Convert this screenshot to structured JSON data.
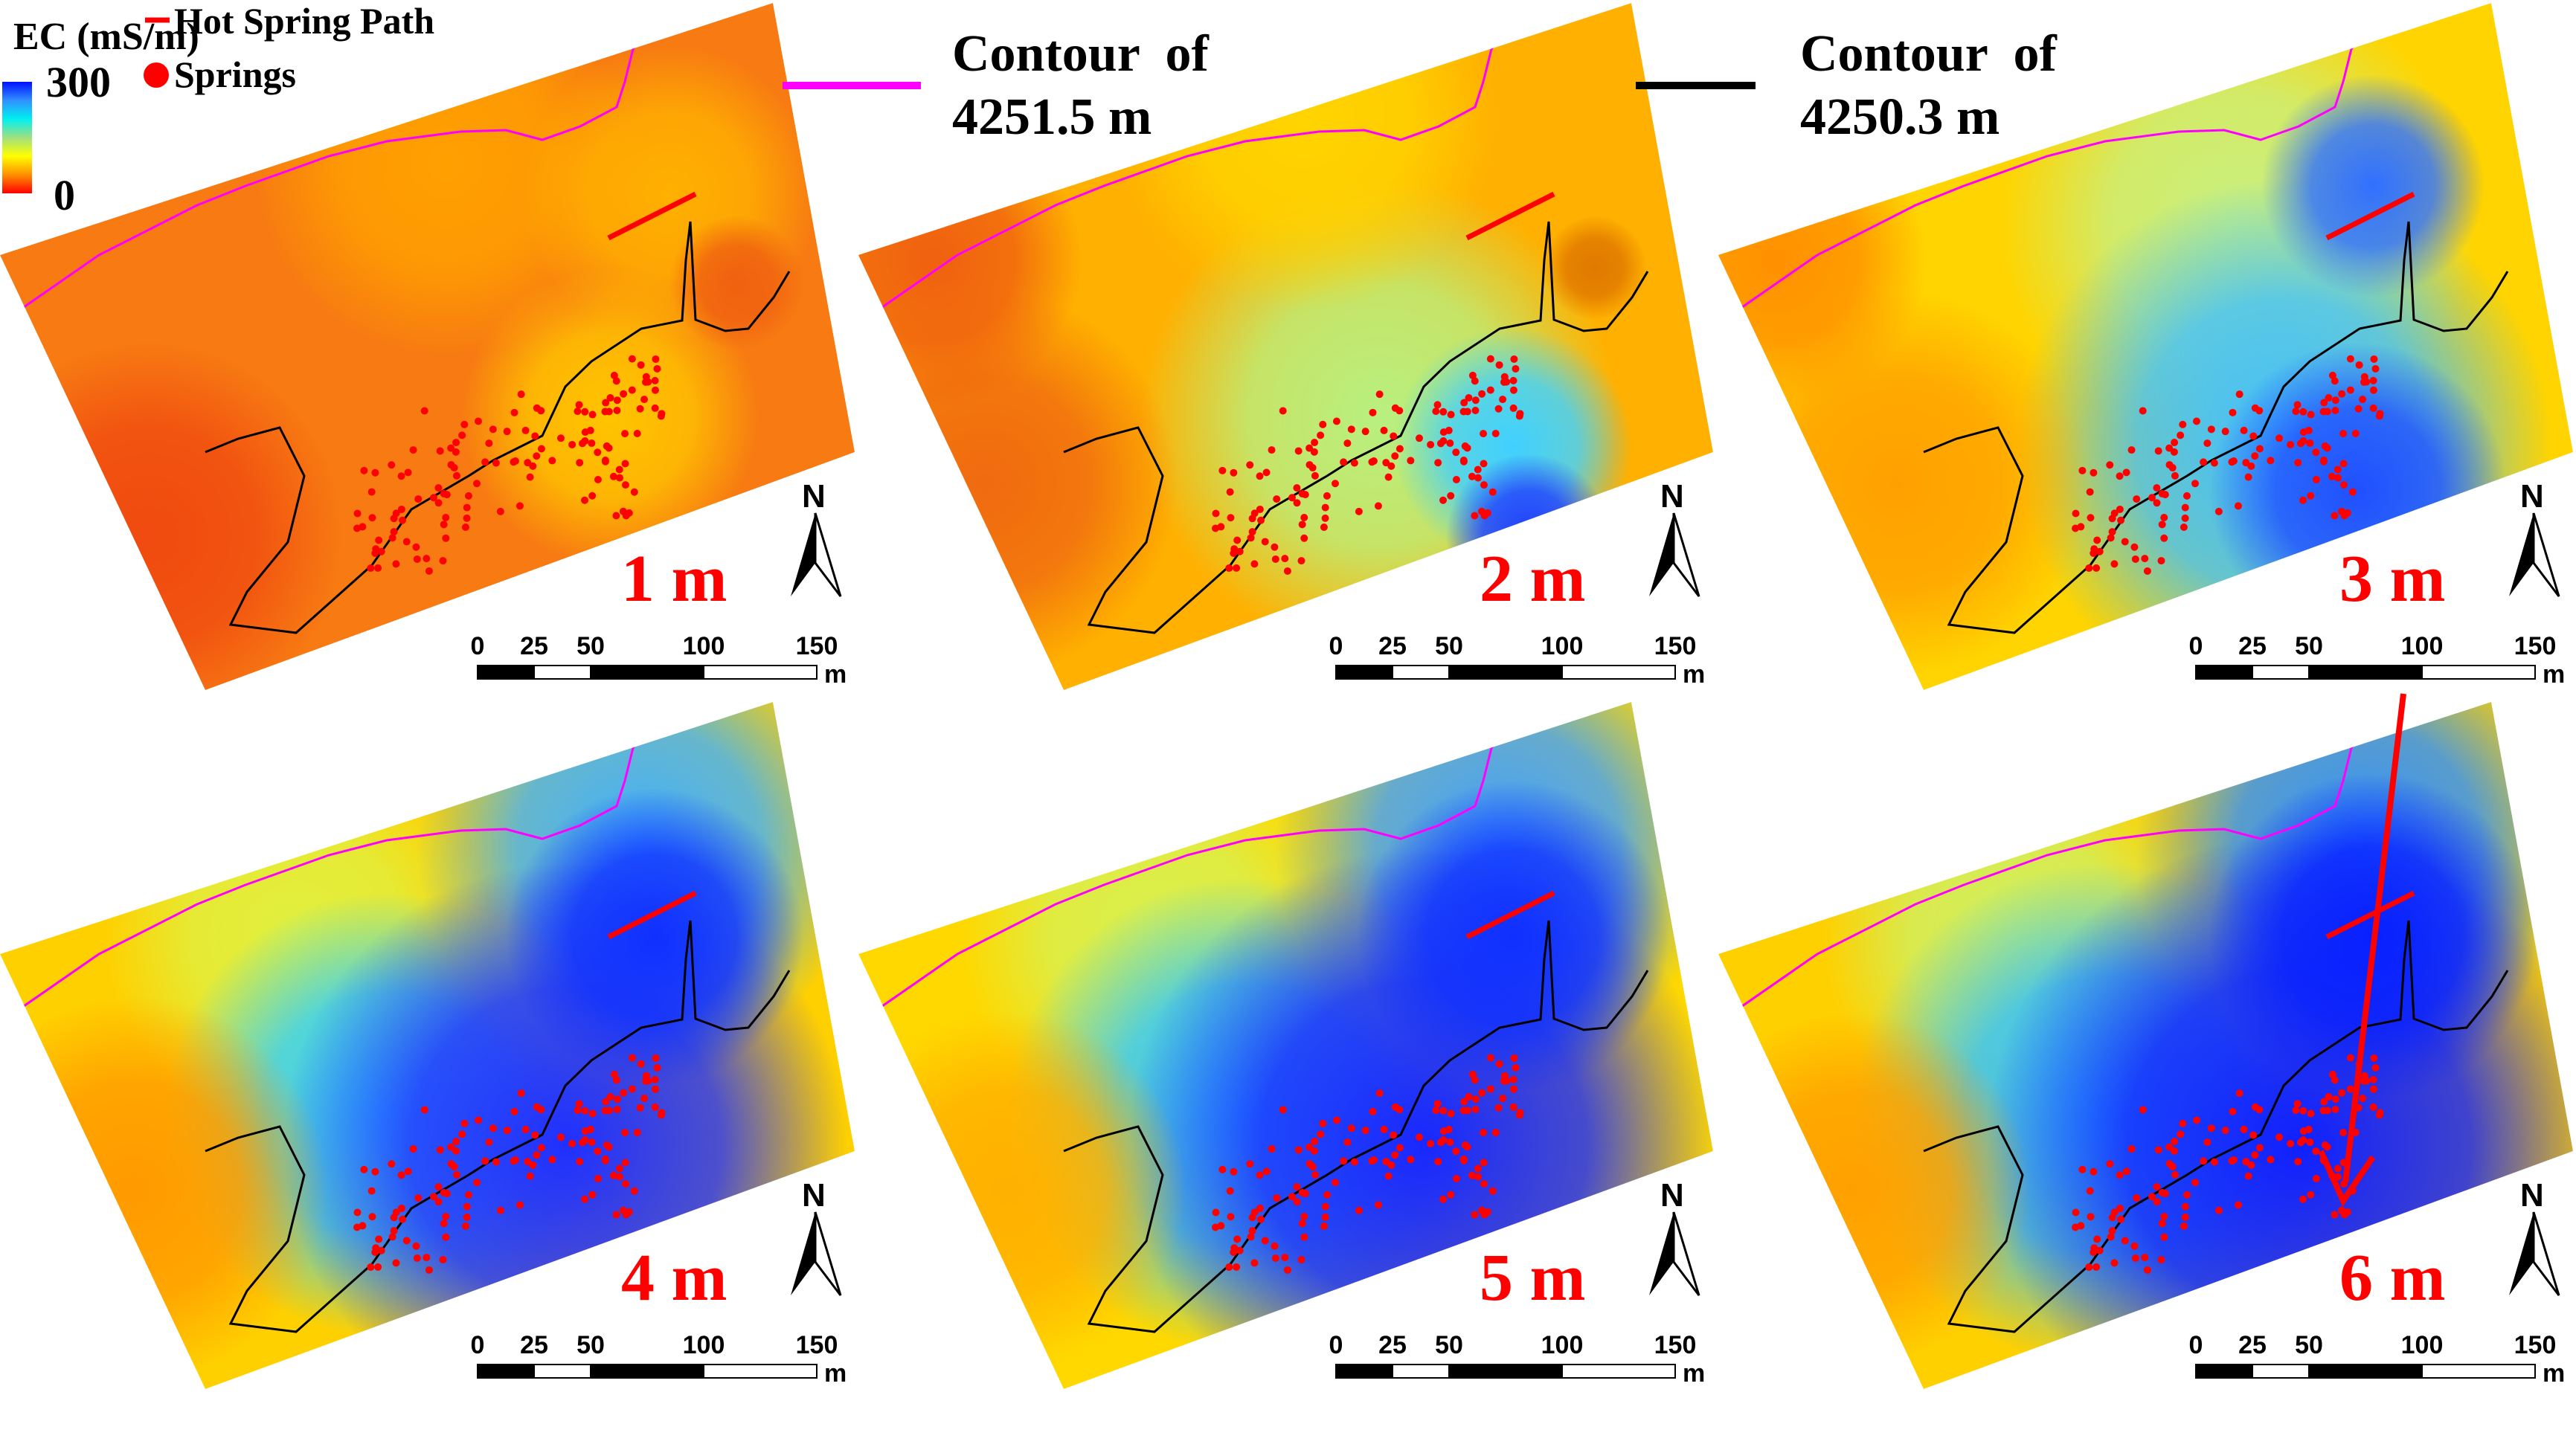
{
  "legend": {
    "title": "EC (mS/m)",
    "max_label": "300",
    "min_label": "0",
    "colorbar_colors": [
      "#0010ff",
      "#3090ff",
      "#00f0f0",
      "#a0e080",
      "#ffff00",
      "#ff9000",
      "#ff0000"
    ],
    "hot_spring_path_label": "Hot Spring Path",
    "springs_label": "Springs",
    "hot_spring_path_color": "#ff0000",
    "springs_color": "#ff0000"
  },
  "contours": [
    {
      "line1": "Contour  of",
      "line2": "4251.5 m",
      "color": "#ff00ff"
    },
    {
      "line1": "Contour  of",
      "line2": "4250.3 m",
      "color": "#000000"
    }
  ],
  "panels": [
    {
      "depth_label": "1 m"
    },
    {
      "depth_label": "2 m"
    },
    {
      "depth_label": "3 m"
    },
    {
      "depth_label": "4 m"
    },
    {
      "depth_label": "5 m"
    },
    {
      "depth_label": "6 m"
    }
  ],
  "north_label": "N",
  "scale_bar": {
    "ticks": [
      "0",
      "25",
      "50",
      "100",
      "150"
    ],
    "unit": "m"
  },
  "depth_label_color": "#ff0000"
}
